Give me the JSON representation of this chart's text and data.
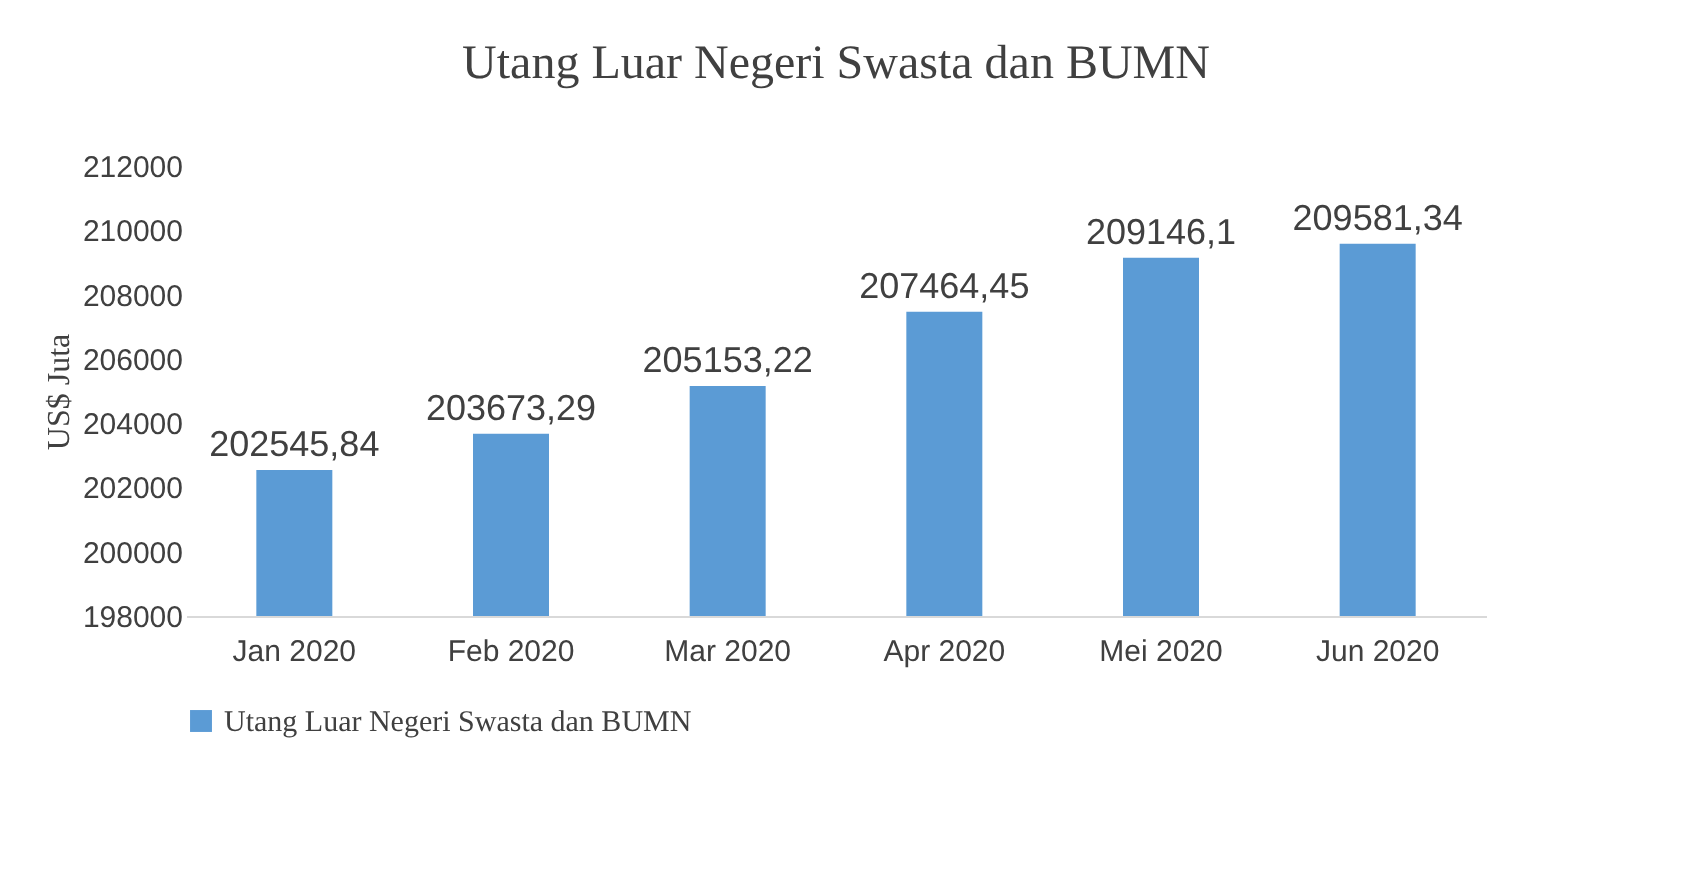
{
  "chart_data": {
    "type": "bar",
    "title": "Utang Luar Negeri Swasta dan BUMN",
    "ylabel": "US$ Juta",
    "categories": [
      "Jan 2020",
      "Feb 2020",
      "Mar 2020",
      "Apr 2020",
      "Mei 2020",
      "Jun 2020"
    ],
    "series": [
      {
        "name": "Utang Luar Negeri Swasta dan BUMN",
        "color": "#5b9bd5",
        "values": [
          202545.84,
          203673.29,
          205153.22,
          207464.45,
          209146.1,
          209581.34
        ],
        "value_labels": [
          "202545,84",
          "203673,29",
          "205153,22",
          "207464,45",
          "209146,1",
          "209581,34"
        ]
      }
    ],
    "ylim": [
      198000,
      212000
    ],
    "yticks": [
      198000,
      200000,
      202000,
      204000,
      206000,
      208000,
      210000,
      212000
    ],
    "grid": false,
    "legend": "bottom"
  }
}
